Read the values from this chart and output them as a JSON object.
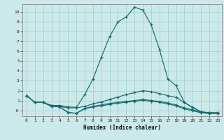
{
  "xlabel": "Humidex (Indice chaleur)",
  "background_color": "#cce9e9",
  "grid_color": "#aad4d4",
  "line_color": "#1a6b6b",
  "xlim": [
    -0.5,
    23.5
  ],
  "ylim": [
    -0.6,
    10.8
  ],
  "xticks": [
    0,
    1,
    2,
    3,
    4,
    5,
    6,
    7,
    8,
    9,
    10,
    11,
    12,
    13,
    14,
    15,
    16,
    17,
    18,
    19,
    20,
    21,
    22,
    23
  ],
  "yticks": [
    0,
    1,
    2,
    3,
    4,
    5,
    6,
    7,
    8,
    9,
    10
  ],
  "ytick_labels": [
    "-0",
    "1",
    "2",
    "3",
    "4",
    "5",
    "6",
    "7",
    "8",
    "9",
    "10"
  ],
  "series": [
    [
      1.5,
      0.8,
      0.8,
      0.5,
      0.5,
      0.35,
      0.3,
      1.6,
      3.2,
      5.4,
      7.5,
      9.0,
      9.5,
      10.5,
      10.2,
      8.7,
      6.2,
      3.2,
      2.5,
      0.8,
      0.25,
      -0.15,
      -0.25,
      -0.25
    ],
    [
      1.5,
      0.8,
      0.8,
      0.5,
      0.4,
      0.25,
      0.25,
      0.4,
      0.65,
      0.85,
      1.1,
      1.35,
      1.6,
      1.8,
      2.0,
      1.9,
      1.7,
      1.5,
      1.3,
      0.8,
      0.3,
      -0.15,
      -0.25,
      -0.25
    ],
    [
      1.5,
      0.8,
      0.8,
      0.4,
      0.35,
      -0.2,
      -0.3,
      0.2,
      0.4,
      0.55,
      0.7,
      0.8,
      0.9,
      1.0,
      1.1,
      1.0,
      0.9,
      0.75,
      0.55,
      0.25,
      0.05,
      -0.2,
      -0.3,
      -0.3
    ],
    [
      1.5,
      0.8,
      0.8,
      0.4,
      0.35,
      -0.25,
      -0.3,
      0.15,
      0.35,
      0.45,
      0.6,
      0.72,
      0.82,
      0.92,
      1.02,
      0.92,
      0.82,
      0.65,
      0.45,
      0.15,
      -0.05,
      -0.25,
      -0.32,
      -0.32
    ]
  ]
}
